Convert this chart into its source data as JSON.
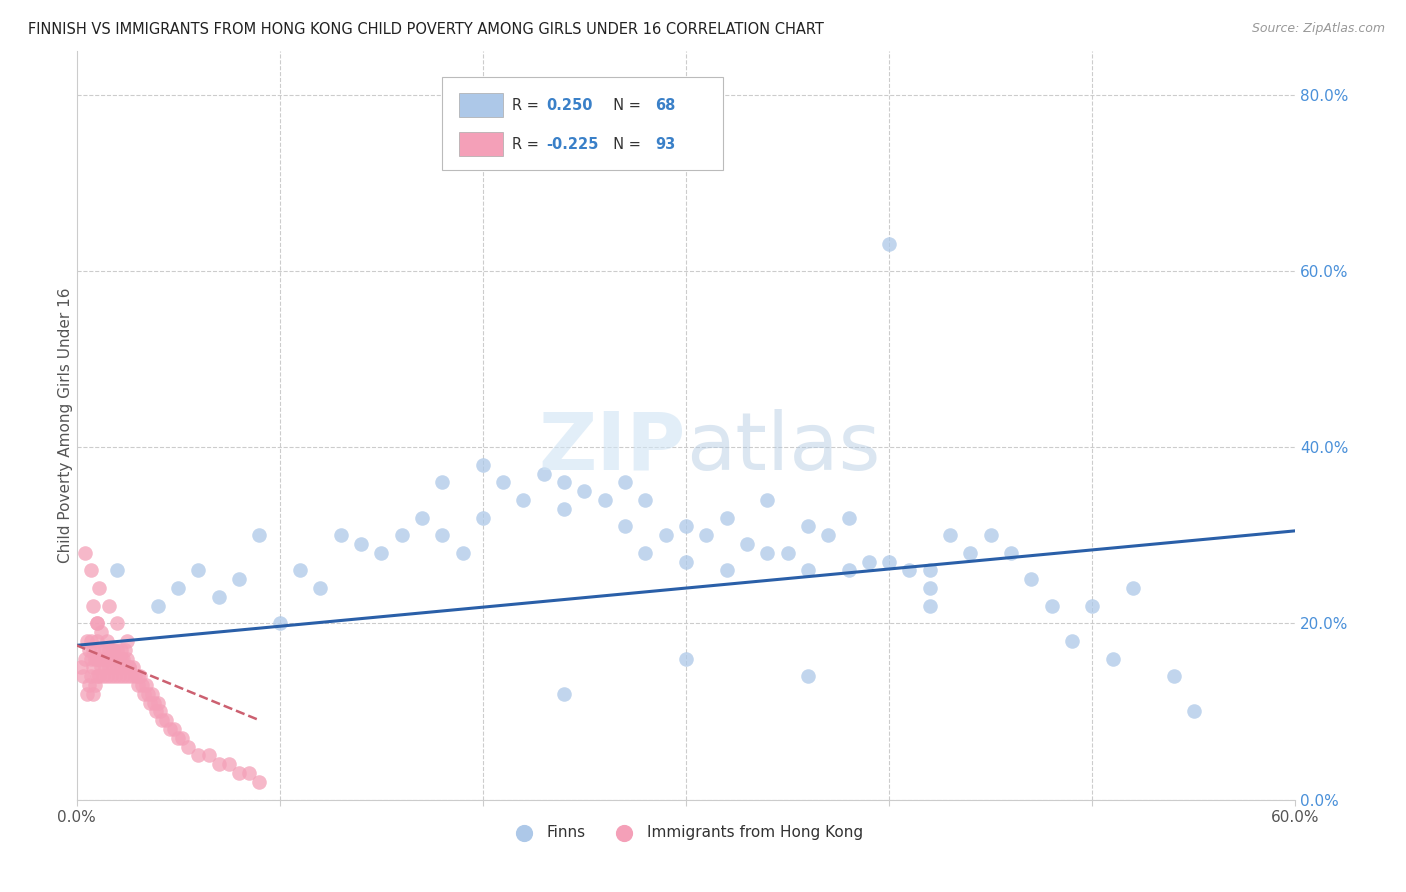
{
  "title": "FINNISH VS IMMIGRANTS FROM HONG KONG CHILD POVERTY AMONG GIRLS UNDER 16 CORRELATION CHART",
  "source": "Source: ZipAtlas.com",
  "ylabel": "Child Poverty Among Girls Under 16",
  "xmin": 0.0,
  "xmax": 0.6,
  "ymin": 0.0,
  "ymax": 0.85,
  "x_tick_labels": [
    "0.0%",
    "",
    "",
    "",
    "",
    "",
    "60.0%"
  ],
  "x_tick_vals": [
    0.0,
    0.1,
    0.2,
    0.3,
    0.4,
    0.5,
    0.6
  ],
  "y_tick_labels_right": [
    "0.0%",
    "20.0%",
    "40.0%",
    "60.0%",
    "80.0%"
  ],
  "y_tick_vals_right": [
    0.0,
    0.2,
    0.4,
    0.6,
    0.8
  ],
  "legend_color1": "#adc8e8",
  "legend_color2": "#f4a0b8",
  "line_color1": "#2a5fa8",
  "line_color2": "#cc6070",
  "watermark_color1": "#d0e4f4",
  "watermark_color2": "#b0c8e0",
  "background_color": "#ffffff",
  "grid_color": "#cccccc",
  "finns_color": "#adc8e8",
  "hk_color": "#f4a0b8",
  "title_color": "#222222",
  "source_color": "#999999",
  "tick_color": "#4a90d9",
  "axis_text_color": "#555555",
  "finns_x": [
    0.02,
    0.04,
    0.05,
    0.06,
    0.07,
    0.08,
    0.09,
    0.1,
    0.11,
    0.12,
    0.13,
    0.14,
    0.15,
    0.16,
    0.17,
    0.18,
    0.18,
    0.19,
    0.2,
    0.2,
    0.21,
    0.22,
    0.23,
    0.24,
    0.24,
    0.25,
    0.26,
    0.27,
    0.27,
    0.28,
    0.28,
    0.29,
    0.3,
    0.3,
    0.31,
    0.32,
    0.32,
    0.33,
    0.34,
    0.34,
    0.35,
    0.36,
    0.36,
    0.37,
    0.38,
    0.38,
    0.39,
    0.4,
    0.4,
    0.41,
    0.42,
    0.43,
    0.44,
    0.45,
    0.46,
    0.47,
    0.48,
    0.49,
    0.5,
    0.51,
    0.52,
    0.54,
    0.55,
    0.3,
    0.42,
    0.24,
    0.36,
    0.42
  ],
  "finns_y": [
    0.26,
    0.22,
    0.24,
    0.26,
    0.23,
    0.25,
    0.3,
    0.2,
    0.26,
    0.24,
    0.3,
    0.29,
    0.28,
    0.3,
    0.32,
    0.36,
    0.3,
    0.28,
    0.38,
    0.32,
    0.36,
    0.34,
    0.37,
    0.36,
    0.33,
    0.35,
    0.34,
    0.31,
    0.36,
    0.34,
    0.28,
    0.3,
    0.27,
    0.31,
    0.3,
    0.32,
    0.26,
    0.29,
    0.34,
    0.28,
    0.28,
    0.31,
    0.26,
    0.3,
    0.32,
    0.26,
    0.27,
    0.63,
    0.27,
    0.26,
    0.26,
    0.3,
    0.28,
    0.3,
    0.28,
    0.25,
    0.22,
    0.18,
    0.22,
    0.16,
    0.24,
    0.14,
    0.1,
    0.16,
    0.22,
    0.12,
    0.14,
    0.24
  ],
  "hk_x": [
    0.002,
    0.003,
    0.004,
    0.005,
    0.005,
    0.006,
    0.006,
    0.007,
    0.007,
    0.007,
    0.008,
    0.008,
    0.008,
    0.009,
    0.009,
    0.01,
    0.01,
    0.01,
    0.01,
    0.011,
    0.011,
    0.012,
    0.012,
    0.013,
    0.013,
    0.014,
    0.014,
    0.015,
    0.015,
    0.016,
    0.016,
    0.017,
    0.017,
    0.018,
    0.018,
    0.019,
    0.019,
    0.02,
    0.02,
    0.021,
    0.021,
    0.022,
    0.022,
    0.023,
    0.023,
    0.024,
    0.024,
    0.025,
    0.025,
    0.026,
    0.027,
    0.028,
    0.029,
    0.03,
    0.031,
    0.032,
    0.033,
    0.034,
    0.035,
    0.036,
    0.037,
    0.038,
    0.039,
    0.04,
    0.041,
    0.042,
    0.044,
    0.046,
    0.048,
    0.05,
    0.052,
    0.055,
    0.06,
    0.065,
    0.07,
    0.075,
    0.08,
    0.085,
    0.09,
    0.008,
    0.01,
    0.012,
    0.015,
    0.018,
    0.022,
    0.026,
    0.03,
    0.004,
    0.007,
    0.011,
    0.016,
    0.02,
    0.025
  ],
  "hk_y": [
    0.15,
    0.14,
    0.16,
    0.12,
    0.18,
    0.13,
    0.17,
    0.14,
    0.16,
    0.18,
    0.12,
    0.15,
    0.17,
    0.13,
    0.16,
    0.14,
    0.16,
    0.18,
    0.2,
    0.14,
    0.16,
    0.15,
    0.17,
    0.14,
    0.16,
    0.15,
    0.17,
    0.14,
    0.16,
    0.15,
    0.17,
    0.14,
    0.16,
    0.15,
    0.17,
    0.14,
    0.16,
    0.15,
    0.17,
    0.14,
    0.16,
    0.15,
    0.17,
    0.14,
    0.16,
    0.15,
    0.17,
    0.14,
    0.16,
    0.15,
    0.14,
    0.15,
    0.14,
    0.13,
    0.14,
    0.13,
    0.12,
    0.13,
    0.12,
    0.11,
    0.12,
    0.11,
    0.1,
    0.11,
    0.1,
    0.09,
    0.09,
    0.08,
    0.08,
    0.07,
    0.07,
    0.06,
    0.05,
    0.05,
    0.04,
    0.04,
    0.03,
    0.03,
    0.02,
    0.22,
    0.2,
    0.19,
    0.18,
    0.17,
    0.16,
    0.15,
    0.14,
    0.28,
    0.26,
    0.24,
    0.22,
    0.2,
    0.18
  ],
  "finn_line_x0": 0.0,
  "finn_line_x1": 0.6,
  "finn_line_y0": 0.175,
  "finn_line_y1": 0.305,
  "hk_line_x0": 0.0,
  "hk_line_x1": 0.09,
  "hk_line_y0": 0.175,
  "hk_line_y1": 0.09
}
